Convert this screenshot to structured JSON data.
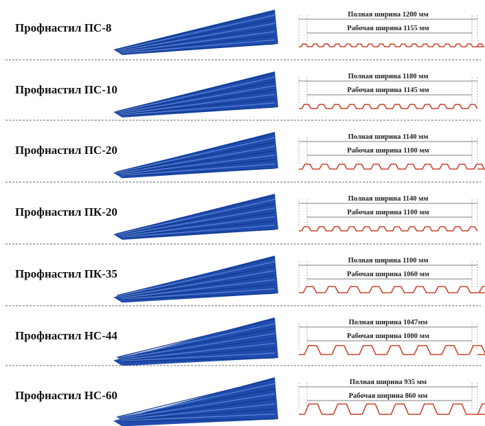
{
  "items": [
    {
      "name": "Профнастил ПС-8",
      "full_width": "Полная ширина 1200 мм",
      "working_width": "Рабочая ширина 1155 мм"
    },
    {
      "name": "Профнастил ПС-10",
      "full_width": "Полная ширина 1180 мм",
      "working_width": "Рабочая ширина 1145 мм"
    },
    {
      "name": "Профнастил ПС-20",
      "full_width": "Полная ширина 1140 мм",
      "working_width": "Рабочая ширина 1100 мм"
    },
    {
      "name": "Профнастил ПК-20",
      "full_width": "Полная ширина 1140 мм",
      "working_width": "Рабочая ширина 1100 мм"
    },
    {
      "name": "Профнастил ПК-35",
      "full_width": "Полная ширина 1100 мм",
      "working_width": "Рабочая ширина 1060 мм"
    },
    {
      "name": "Профнастил НС-44",
      "full_width": "Полная ширина 1047мм",
      "working_width": "Рабочая ширина 1000 мм"
    },
    {
      "name": "Профнастил НС-60",
      "full_width": "Полная ширина 935 мм",
      "working_width": "Рабочая ширина 860 мм"
    }
  ]
}
